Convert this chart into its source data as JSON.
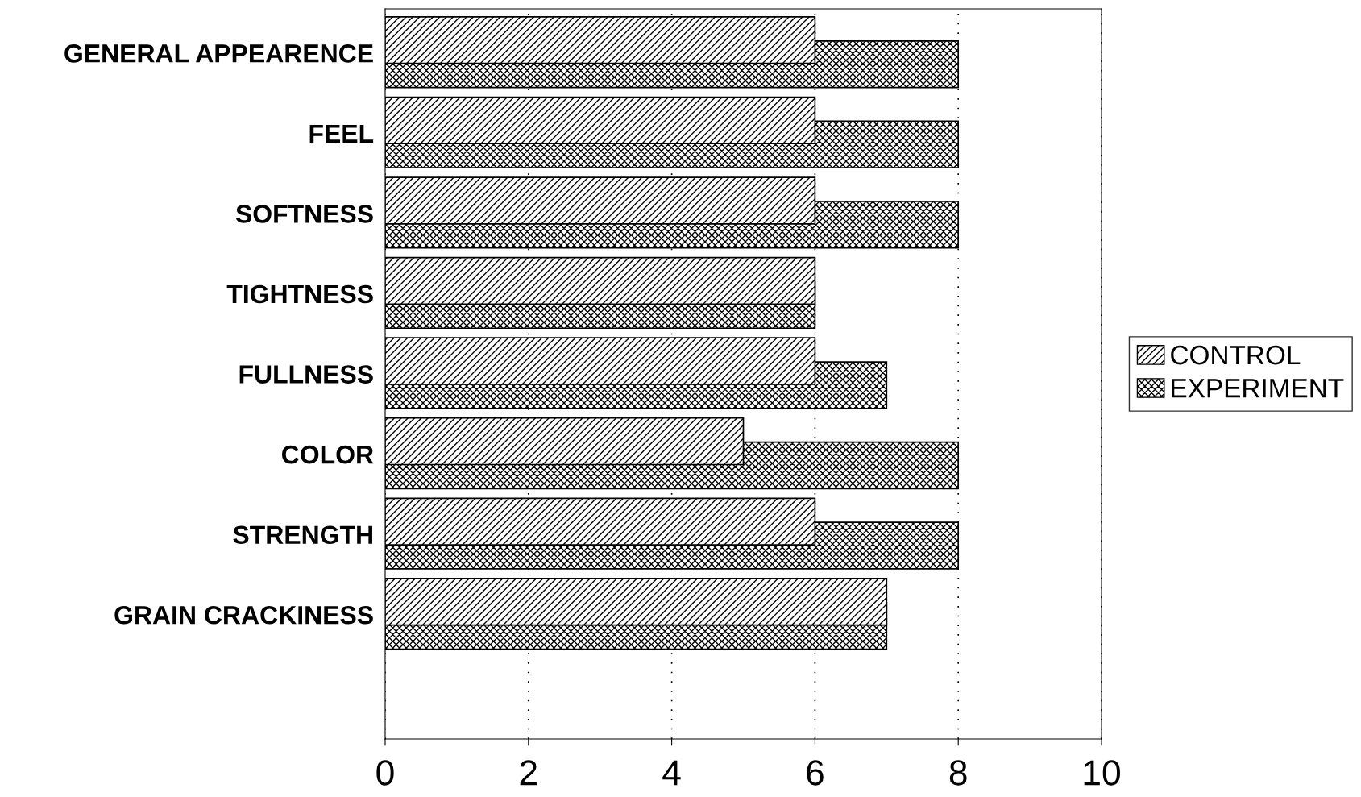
{
  "chart_data": {
    "type": "bar",
    "orientation": "horizontal",
    "categories": [
      "GENERAL APPEARENCE",
      "FEEL",
      "SOFTNESS",
      "TIGHTNESS",
      "FULLNESS",
      "COLOR",
      "STRENGTH",
      "GRAIN CRACKINESS"
    ],
    "series": [
      {
        "name": "CONTROL",
        "color": "#000000",
        "values": [
          6,
          6,
          6,
          6,
          6,
          5,
          6,
          7
        ]
      },
      {
        "name": "EXPERIMENT",
        "color": "#000000",
        "values": [
          8,
          8,
          8,
          6,
          7,
          8,
          8,
          7
        ]
      }
    ],
    "xlim": [
      0,
      10
    ],
    "xticks": [
      0,
      2,
      4,
      6,
      8,
      10
    ],
    "grid": "x",
    "legend": "right"
  }
}
